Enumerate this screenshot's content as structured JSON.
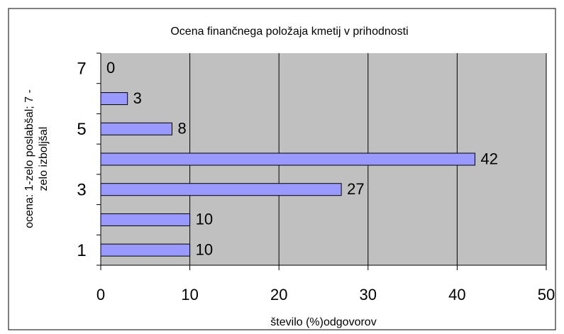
{
  "chart_data": {
    "type": "bar",
    "orientation": "horizontal",
    "title": "Ocena finančnega položaja kmetij v prihodnosti",
    "xlabel": "število (%)odgovorov",
    "ylabel": [
      "ocena: 1-zelo poslabšal; 7 -",
      "zelo izboljšal"
    ],
    "categories": [
      "1",
      null,
      "3",
      null,
      "5",
      null,
      "7"
    ],
    "values": [
      10,
      10,
      27,
      42,
      8,
      3,
      0
    ],
    "color": "#9999ff",
    "xlim": [
      0,
      50
    ],
    "xticks": [
      0,
      10,
      20,
      30,
      40,
      50
    ],
    "grid": true
  }
}
